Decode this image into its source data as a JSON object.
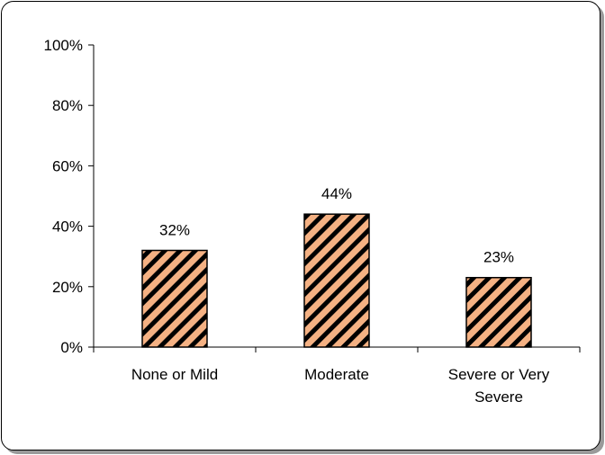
{
  "chart_data": {
    "type": "bar",
    "categories": [
      [
        "None or Mild"
      ],
      [
        "Moderate"
      ],
      [
        "Severe or Very",
        "Severe"
      ]
    ],
    "values": [
      32,
      44,
      23
    ],
    "data_labels": [
      "32%",
      "44%",
      "23%"
    ],
    "ylim": [
      0,
      100
    ],
    "yticks": [
      "0%",
      "20%",
      "40%",
      "60%",
      "80%",
      "100%"
    ],
    "title": "",
    "xlabel": "",
    "ylabel": "",
    "grid": false,
    "legend": "none",
    "bar_fill": "#f4b183",
    "bar_hatch": "#000000"
  }
}
